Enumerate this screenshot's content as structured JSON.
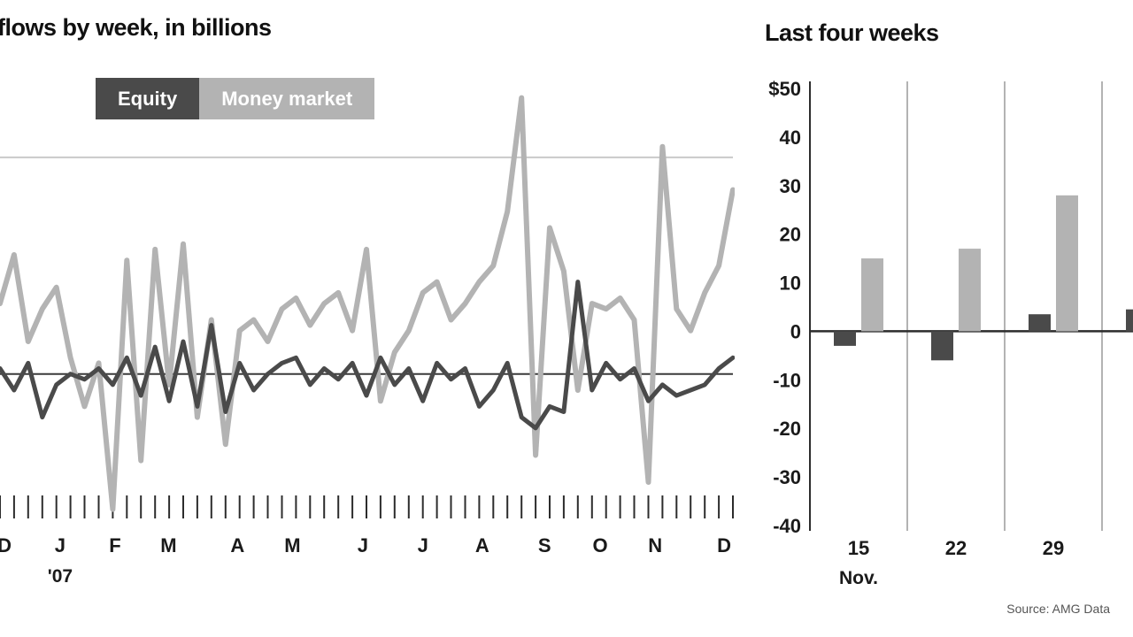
{
  "page": {
    "background": "#ffffff",
    "text_color": "#1a1a1a"
  },
  "chart_data": [
    {
      "type": "line",
      "title": "flows by week, in billions",
      "unit": "billions of dollars, weekly",
      "ylim": [
        -28,
        56
      ],
      "gridlines": [
        40
      ],
      "zero_line": true,
      "x_axis": {
        "months": [
          "D",
          "J",
          "F",
          "M",
          "A",
          "M",
          "J",
          "J",
          "A",
          "S",
          "O",
          "N",
          "D"
        ],
        "month_positions": [
          0.006,
          0.082,
          0.157,
          0.23,
          0.324,
          0.399,
          0.495,
          0.577,
          0.658,
          0.743,
          0.819,
          0.894,
          0.988
        ],
        "year_label": "'07",
        "weekly_ticks": 53
      },
      "series": [
        {
          "name": "Equity",
          "color": "#4a4a4a",
          "values": [
            1,
            -3,
            2,
            -8,
            -2,
            0,
            -1,
            1,
            -2,
            3,
            -4,
            5,
            -5,
            6,
            -6,
            9,
            -7,
            2,
            -3,
            0,
            2,
            3,
            -2,
            1,
            -1,
            2,
            -4,
            3,
            -2,
            1,
            -5,
            2,
            -1,
            1,
            -6,
            -3,
            2,
            -8,
            -10,
            -6,
            -7,
            17,
            -3,
            2,
            -1,
            1,
            -5,
            -2,
            -4,
            -3,
            -2,
            1,
            3
          ]
        },
        {
          "name": "Money market",
          "color": "#b3b3b3",
          "values": [
            13,
            22,
            6,
            12,
            16,
            3,
            -6,
            2,
            -25,
            21,
            -16,
            23,
            -2,
            24,
            -8,
            10,
            -13,
            8,
            10,
            6,
            12,
            14,
            9,
            13,
            15,
            8,
            23,
            -5,
            4,
            8,
            15,
            17,
            10,
            13,
            17,
            20,
            30,
            51,
            -15,
            27,
            19,
            -3,
            13,
            12,
            14,
            10,
            -20,
            42,
            12,
            8,
            15,
            20,
            34
          ]
        }
      ]
    },
    {
      "type": "bar",
      "title": "Last four weeks",
      "ylim": [
        -40,
        50
      ],
      "y_ticks": [
        "$50",
        "40",
        "30",
        "20",
        "10",
        "0",
        "-10",
        "-20",
        "-30",
        "-40"
      ],
      "y_tick_values": [
        50,
        40,
        30,
        20,
        10,
        0,
        -10,
        -20,
        -30,
        -40
      ],
      "categories": [
        "15",
        "22",
        "29",
        ""
      ],
      "category_sublabels": [
        "Nov.",
        "",
        "",
        ""
      ],
      "series": [
        {
          "name": "Equity",
          "color": "#4a4a4a",
          "values": [
            -3,
            -6,
            3.5,
            4.5
          ]
        },
        {
          "name": "Money market",
          "color": "#b3b3b3",
          "values": [
            15,
            17,
            28,
            null
          ]
        }
      ],
      "grid": "vertical-between-groups",
      "source": "Source: AMG Data"
    }
  ]
}
